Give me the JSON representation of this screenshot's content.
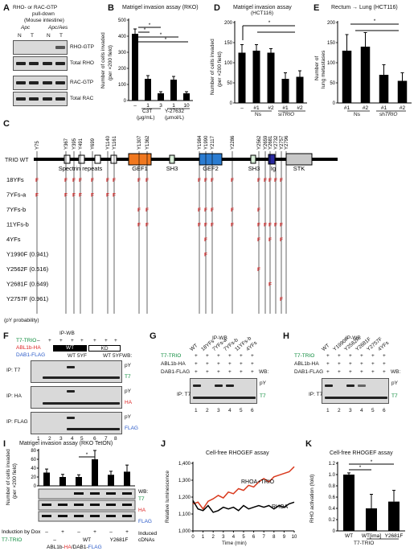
{
  "panels": {
    "A": {
      "letter": "A",
      "title1": "RHO- or RAC-GTP",
      "title2": "pull-down",
      "title3": "(Mouse intestine)",
      "geno1": "Apc",
      "geno2": "Apc/Aes",
      "lanes": [
        "N",
        "T",
        "N",
        "T"
      ],
      "rows": [
        "RHO-GTP",
        "Total RHO",
        "RAC-GTP",
        "Total RAC"
      ]
    },
    "B": {
      "letter": "B",
      "title": "Matrigel invasion assay (RKO)",
      "ylabel1": "Number of cells invaded",
      "ylabel2": "(per ×200 field)",
      "yticks": [
        "0",
        "100",
        "200",
        "300",
        "400",
        "500"
      ],
      "xlabels": [
        "–",
        "1",
        "3",
        "1",
        "10"
      ],
      "group1": "C3T",
      "group1unit": "(μg/mL)",
      "group2": "Y-27632",
      "group2unit": "(μmol/L)",
      "star": "*"
    },
    "D": {
      "letter": "D",
      "title1": "Matrigel invasion assay",
      "title2": "(HCT116)",
      "ylabel1": "Number of cells invaded",
      "ylabel2": "(per ×200 field)",
      "yticks": [
        "0",
        "50",
        "100",
        "150",
        "200"
      ],
      "xlabels": [
        "–",
        "#1",
        "#2",
        "#1",
        "#2"
      ],
      "g1": "Ns",
      "g2": "si",
      "g2b": "TRIO",
      "star": "*"
    },
    "E": {
      "letter": "E",
      "title": "Rectum → Lung (HCT116)",
      "ylabel1": "Number of",
      "ylabel2": "lung metastases",
      "yticks": [
        "0",
        "50",
        "100",
        "150",
        "200"
      ],
      "xlabels": [
        "#1",
        "#2",
        "#1",
        "#2"
      ],
      "g1": "Ns",
      "g2": "sh",
      "g2b": "TRIO",
      "star": "*"
    },
    "C": {
      "letter": "C",
      "wt": "TRIO WT",
      "sites": [
        "Y75",
        "Y367",
        "Y395",
        "Y491",
        "Y699",
        "Y1140",
        "Y1161",
        "Y1307",
        "Y1362",
        "Y1984",
        "Y1990",
        "Y2117",
        "Y2286",
        "Y2562",
        "Y2659",
        "Y2681",
        "Y2732",
        "Y2757",
        "Y2796"
      ],
      "domains": [
        "Spectrin repeats",
        "GEF1",
        "SH3",
        "GEF2",
        "SH3",
        "Ig",
        "STK"
      ],
      "mutants": [
        "18YFs",
        "7YFs-a",
        "7YFs-b",
        "11YFs-b",
        "4YFs",
        "Y1990F (0.941)",
        "Y2562F (0.516)",
        "Y2681F (0.649)",
        "Y2757F (0.961)"
      ],
      "pyprob": "(pY probability)",
      "F": "F"
    },
    "F": {
      "letter": "F",
      "head": "IP-WB",
      "rowlabels": [
        "T7-TRIO",
        "ABL1b-HA",
        "DAB1-FLAG"
      ],
      "wt": "WT",
      "kd": "KD",
      "wt2": "WT",
      "fyf": "5YF",
      "wb": "WB:",
      "ips": [
        "IP: T7",
        "IP: HA",
        "IP: FLAG"
      ],
      "wbs": [
        "pY",
        "T7",
        "pY",
        "HA",
        "pY",
        "FLAG"
      ],
      "lanes": [
        "1",
        "2",
        "3",
        "4",
        "5",
        "6",
        "7",
        "8"
      ],
      "signs": [
        "–",
        "+",
        "+",
        "+",
        "+",
        "+",
        "+",
        "+"
      ]
    },
    "G": {
      "letter": "G",
      "head": "IP-WB",
      "rowlabels": [
        "T7-TRIO",
        "ABL1b-HA",
        "DAB1-FLAG"
      ],
      "cols": [
        "WT",
        "18YFs",
        "7YFs-a",
        "7YFs-b",
        "11YFs-b",
        "4YFs"
      ],
      "plus": "+",
      "wb": "WB:",
      "ip": "IP: T7",
      "wbs": [
        "pY",
        "T7"
      ],
      "lanes": [
        "1",
        "2",
        "3",
        "4",
        "5",
        "6"
      ]
    },
    "H": {
      "letter": "H",
      "head": "IP-WB",
      "rowlabels": [
        "T7-TRIO",
        "ABL1b-HA",
        "DAB1-FLAG"
      ],
      "cols": [
        "WT",
        "Y1990F",
        "Y2562F",
        "Y2681F",
        "Y2757F",
        "4YFs"
      ],
      "plus": "+",
      "wb": "WB:",
      "ip": "IP: T7",
      "wbs": [
        "pY",
        "T7"
      ],
      "lanes": [
        "1",
        "2",
        "3",
        "4",
        "5",
        "6"
      ]
    },
    "I": {
      "letter": "I",
      "title": "Matrigel invasion assay (RKO TetON)",
      "ylabel1": "Number of cells invaded",
      "ylabel2": "(per ×200 field)",
      "yticks": [
        "0",
        "20",
        "40",
        "60",
        "80"
      ],
      "wb": "WB:",
      "wbs": [
        "T7",
        "HA",
        "FLAG"
      ],
      "star": "*",
      "induction": "Induction by Dox",
      "signs": [
        "–",
        "+",
        "–",
        "+",
        "–",
        "+"
      ],
      "t7": "T7-TRIO",
      "wt": "WT",
      "mut": "Y2681F",
      "dash": "–",
      "induced": "Induced",
      "cdnas": "cDNAs",
      "abl": "ABL1b-",
      "ha": "HA",
      "slash": "/DAB1-",
      "flag": "FLAG"
    },
    "J": {
      "letter": "J",
      "title": "Cell-free RHOGEF assay",
      "ylabel": "Relative luminescence",
      "xlabel": "Time (min)",
      "yticks": [
        "1,000",
        "1,100",
        "1,200",
        "1,300",
        "1,400"
      ],
      "xticks": [
        "0",
        "1",
        "2",
        "3",
        "4",
        "5",
        "6",
        "7",
        "8",
        "9",
        "10"
      ],
      "s1": "RHOA+TRIO",
      "s2": "RHOA"
    },
    "K": {
      "letter": "K",
      "title": "Cell-free RHOGEF assay",
      "ylabel": "RHO activation (fold)",
      "yticks": [
        "0",
        "0.2",
        "0.4",
        "0.6",
        "0.8",
        "1.0",
        "1.2"
      ],
      "xlabels": [
        "WT",
        "WT[ima]",
        "Y2681F"
      ],
      "group": "T7-TRIO",
      "star": "*"
    }
  },
  "chart_data": [
    {
      "type": "bar",
      "panel": "B",
      "categories": [
        "–",
        "C3T 1",
        "C3T 3",
        "Y-27632 1",
        "Y-27632 10"
      ],
      "values": [
        415,
        135,
        45,
        130,
        45
      ],
      "ylim": [
        0,
        500
      ]
    },
    {
      "type": "bar",
      "panel": "D",
      "categories": [
        "–",
        "Ns #1",
        "Ns #2",
        "siTRIO #1",
        "siTRIO #2"
      ],
      "values": [
        125,
        130,
        125,
        60,
        65
      ],
      "ylim": [
        0,
        200
      ]
    },
    {
      "type": "bar",
      "panel": "E",
      "categories": [
        "Ns #1",
        "Ns #2",
        "shTRIO #1",
        "shTRIO #2"
      ],
      "values": [
        130,
        140,
        70,
        55
      ],
      "ylim": [
        0,
        200
      ]
    },
    {
      "type": "bar",
      "panel": "I",
      "categories": [
        "– –",
        "– +",
        "WT –",
        "WT +",
        "Y2681F –",
        "Y2681F +"
      ],
      "values": [
        30,
        20,
        20,
        60,
        25,
        32
      ],
      "ylim": [
        0,
        80
      ]
    },
    {
      "type": "line",
      "panel": "J",
      "x": [
        0,
        0.5,
        1,
        1.5,
        2,
        2.5,
        3,
        3.5,
        4,
        4.5,
        5,
        5.5,
        6,
        6.5,
        7,
        7.5,
        8,
        8.5,
        9,
        9.5,
        10
      ],
      "series": [
        {
          "name": "RHOA+TRIO",
          "values": [
            1160,
            1170,
            1130,
            1175,
            1190,
            1210,
            1195,
            1230,
            1220,
            1250,
            1240,
            1270,
            1260,
            1290,
            1310,
            1290,
            1320,
            1330,
            1340,
            1350,
            1380
          ]
        },
        {
          "name": "RHOA",
          "values": [
            1180,
            1130,
            1120,
            1150,
            1110,
            1120,
            1140,
            1130,
            1140,
            1120,
            1150,
            1130,
            1140,
            1150,
            1140,
            1150,
            1130,
            1150,
            1140,
            1160,
            1170
          ]
        }
      ],
      "ylim": [
        1000,
        1400
      ],
      "xlim": [
        0,
        10
      ]
    },
    {
      "type": "bar",
      "panel": "K",
      "categories": [
        "WT",
        "WT[ima]",
        "Y2681F"
      ],
      "values": [
        1.0,
        0.4,
        0.52
      ],
      "ylim": [
        0,
        1.2
      ]
    }
  ]
}
